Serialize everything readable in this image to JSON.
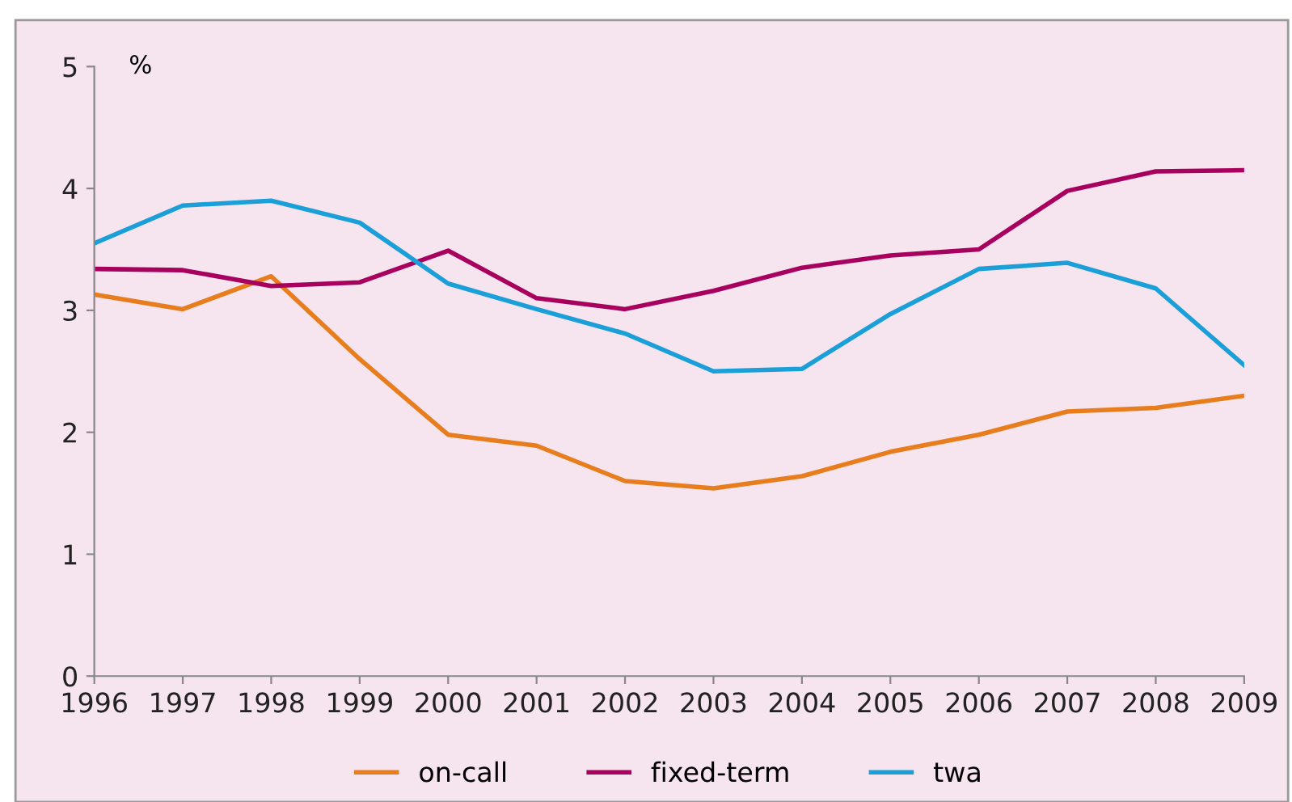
{
  "chart_data": {
    "type": "line",
    "ylabel": "%",
    "categories": [
      "1996",
      "1997",
      "1998",
      "1999",
      "2000",
      "2001",
      "2002",
      "2003",
      "2004",
      "2005",
      "2006",
      "2007",
      "2008",
      "2009"
    ],
    "series": [
      {
        "name": "on-call",
        "color": "#e87d1e",
        "values": [
          3.13,
          3.01,
          3.28,
          2.6,
          1.98,
          1.89,
          1.6,
          1.54,
          1.64,
          1.84,
          1.98,
          2.17,
          2.2,
          2.3
        ]
      },
      {
        "name": "fixed-term",
        "color": "#a8005e",
        "values": [
          3.34,
          3.33,
          3.2,
          3.23,
          3.49,
          3.1,
          3.01,
          3.16,
          3.35,
          3.45,
          3.5,
          3.98,
          4.14,
          4.15
        ]
      },
      {
        "name": "twa",
        "color": "#1a9fd9",
        "values": [
          3.55,
          3.86,
          3.9,
          3.72,
          3.22,
          3.01,
          2.81,
          2.5,
          2.52,
          2.97,
          3.34,
          3.39,
          3.18,
          2.55
        ]
      }
    ],
    "ylim": [
      0,
      5
    ],
    "yticks": [
      0,
      1,
      2,
      3,
      4,
      5
    ],
    "grid": false,
    "legend": "bottom",
    "marker": "none",
    "line_style": "solid"
  }
}
